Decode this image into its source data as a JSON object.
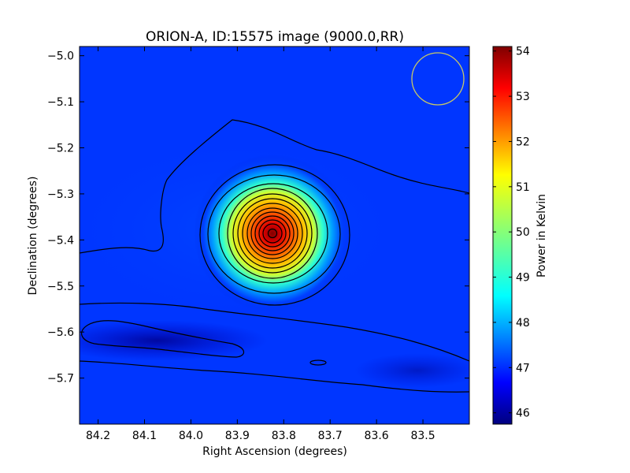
{
  "chart_data": {
    "type": "heatmap",
    "title": "ORION-A, ID:15575 image (9000.0,RR)",
    "xlabel": "Right Ascension (degrees)",
    "ylabel": "Declination (degrees)",
    "colorbar_label": "Power in Kelvin",
    "x_ticks": [
      "84.2",
      "84.1",
      "84.0",
      "83.9",
      "83.8",
      "83.7",
      "83.6",
      "83.5"
    ],
    "x_tick_values": [
      84.2,
      84.1,
      84.0,
      83.9,
      83.8,
      83.7,
      83.6,
      83.5
    ],
    "y_ticks": [
      "−5.0",
      "−5.1",
      "−5.2",
      "−5.3",
      "−5.4",
      "−5.5",
      "−5.6",
      "−5.7"
    ],
    "y_tick_values": [
      -5.0,
      -5.1,
      -5.2,
      -5.3,
      -5.4,
      -5.5,
      -5.6,
      -5.7
    ],
    "xlim": [
      84.24,
      83.4
    ],
    "ylim": [
      -5.8,
      -4.98
    ],
    "colorbar_ticks": [
      "46",
      "47",
      "48",
      "49",
      "50",
      "51",
      "52",
      "53",
      "54"
    ],
    "colorbar_tick_values": [
      46,
      47,
      48,
      49,
      50,
      51,
      52,
      53,
      54
    ],
    "colorbar_range": [
      45.75,
      54.1
    ],
    "colormap": "jet",
    "peak": {
      "ra": 83.82,
      "dec": -5.38,
      "value": 54.1
    },
    "background_level": 46.9,
    "minimum_region": {
      "ra": 84.19,
      "dec": -5.61,
      "value": 46.2
    },
    "beam": {
      "ra": 83.465,
      "dec": -5.05,
      "color": "#c8c864"
    },
    "contour_color": "#000000"
  }
}
